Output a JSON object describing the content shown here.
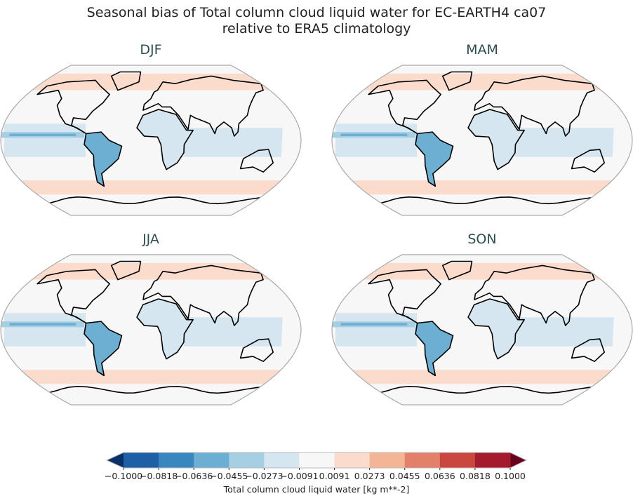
{
  "title_line1": "Seasonal bias of Total column cloud liquid water for EC-EARTH4 ca07",
  "title_line2": "relative to ERA5 climatology",
  "panels": [
    {
      "label": "DJF"
    },
    {
      "label": "MAM"
    },
    {
      "label": "JJA"
    },
    {
      "label": "SON"
    }
  ],
  "colorbar": {
    "label": "Total column cloud liquid water [kg m**-2]",
    "ticks": [
      "−0.1000",
      "−0.0818",
      "−0.0636",
      "−0.0455",
      "−0.0273",
      "−0.0091",
      "0.0091",
      "0.0273",
      "0.0455",
      "0.0636",
      "0.0818",
      "0.1000"
    ],
    "colors": [
      "#1f5fa6",
      "#3a87c0",
      "#6cafd3",
      "#a7cfe4",
      "#d6e6f0",
      "#f7f7f7",
      "#fbdccc",
      "#f4b496",
      "#e3806a",
      "#c9473f",
      "#a41b2d"
    ],
    "under_color": "#0a3167",
    "over_color": "#67001f",
    "extend": "both"
  }
}
